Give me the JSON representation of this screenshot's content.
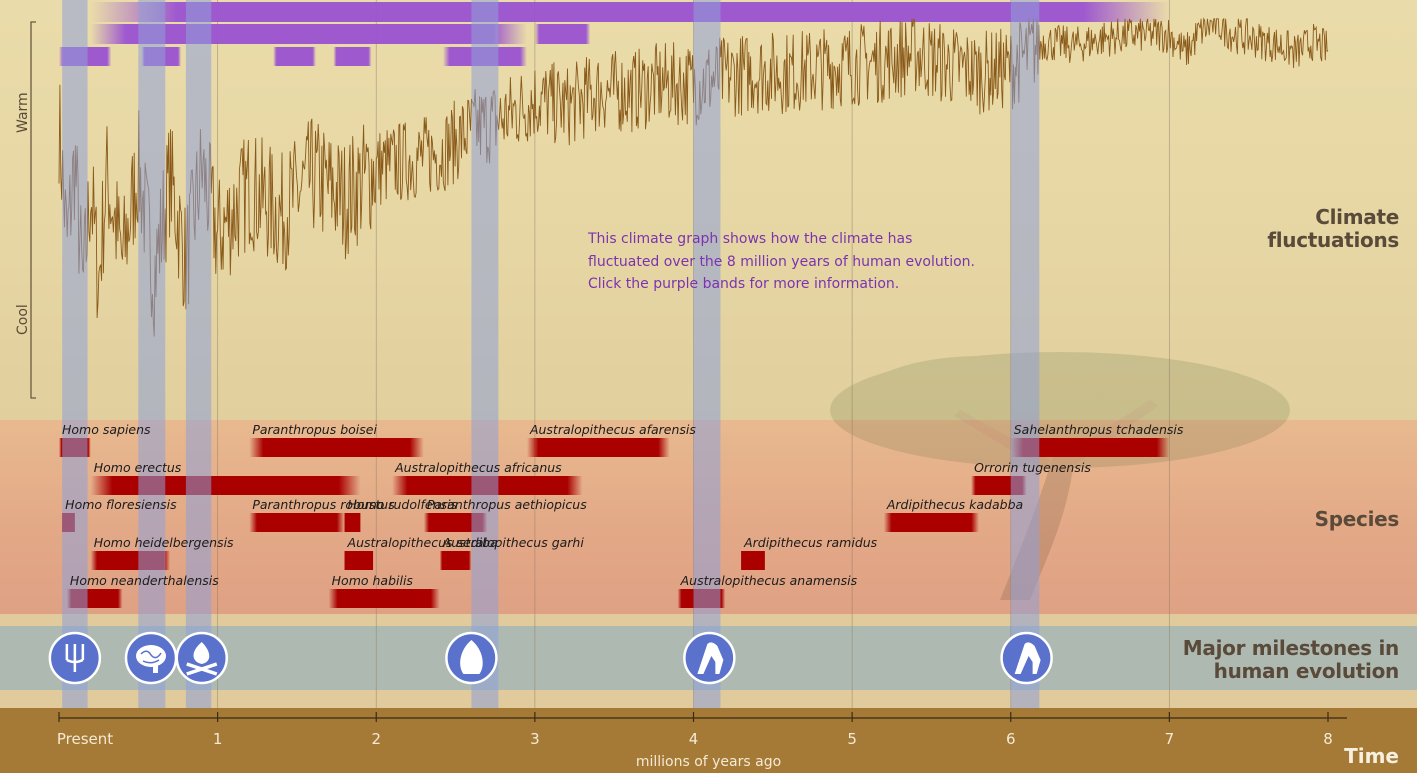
{
  "sections": {
    "climate": "Climate fluctuations",
    "species": "Species",
    "milestones": "Major milestones in human evolution",
    "time": "Time"
  },
  "climate_axis": {
    "warm": "Warm",
    "cool": "Cool"
  },
  "info_text": "This climate graph shows how the climate has fluctuated over the 8 million years of human evolution. Click the purple bands for more information.",
  "x_axis": {
    "title": "millions of years ago",
    "ticks": [
      {
        "value": 0,
        "label": "Present"
      },
      {
        "value": 1,
        "label": "1"
      },
      {
        "value": 2,
        "label": "2"
      },
      {
        "value": 3,
        "label": "3"
      },
      {
        "value": 4,
        "label": "4"
      },
      {
        "value": 5,
        "label": "5"
      },
      {
        "value": 6,
        "label": "6"
      },
      {
        "value": 7,
        "label": "7"
      },
      {
        "value": 8,
        "label": "8"
      }
    ]
  },
  "colors": {
    "purple_band": "#9a52d0",
    "blue_band": "#8ea0d8",
    "species_bar": "#aa0000",
    "climate_line": "#8a5a1a",
    "milestone_circle": "#5a72cc"
  },
  "chart_data": {
    "type": "line",
    "title": "Climate fluctuations",
    "xlabel": "millions of years ago",
    "ylabel": "Warm / Cool",
    "xlim": [
      0,
      8
    ],
    "ylim": [
      0,
      1
    ],
    "blue_bands": [
      {
        "start": 0.02,
        "end": 0.18
      },
      {
        "start": 0.5,
        "end": 0.67
      },
      {
        "start": 0.8,
        "end": 0.96
      },
      {
        "start": 2.6,
        "end": 2.77
      },
      {
        "start": 4.0,
        "end": 4.17
      },
      {
        "start": 6.0,
        "end": 6.18
      }
    ],
    "purple_row1": [
      {
        "start": 0.2,
        "end": 7.0
      }
    ],
    "purple_row2": [
      {
        "start": 0.2,
        "end": 2.95
      },
      {
        "start": 3.0,
        "end": 3.35
      }
    ],
    "purple_row3": [
      {
        "start": 0.0,
        "end": 0.33
      },
      {
        "start": 0.52,
        "end": 0.77
      },
      {
        "start": 1.35,
        "end": 1.62
      },
      {
        "start": 1.73,
        "end": 1.97
      },
      {
        "start": 2.42,
        "end": 2.95
      }
    ],
    "climate_series": {
      "name": "Climate",
      "x": [
        0.0,
        0.05,
        0.1,
        0.15,
        0.2,
        0.25,
        0.3,
        0.4,
        0.5,
        0.6,
        0.7,
        0.8,
        0.9,
        1.0,
        1.2,
        1.4,
        1.6,
        1.8,
        2.0,
        2.2,
        2.4,
        2.6,
        2.8,
        3.0,
        3.2,
        3.4,
        3.6,
        3.8,
        4.0,
        4.2,
        4.4,
        4.6,
        4.8,
        5.0,
        5.2,
        5.4,
        5.6,
        5.8,
        6.0,
        6.2,
        6.4,
        6.6,
        6.8,
        7.0,
        7.1,
        7.2,
        7.3,
        7.4,
        7.5,
        7.6,
        7.7,
        7.8,
        7.9,
        8.0
      ],
      "y": [
        0.72,
        0.4,
        0.62,
        0.28,
        0.55,
        0.3,
        0.58,
        0.36,
        0.6,
        0.32,
        0.58,
        0.35,
        0.6,
        0.42,
        0.55,
        0.48,
        0.58,
        0.52,
        0.6,
        0.62,
        0.64,
        0.7,
        0.73,
        0.78,
        0.76,
        0.8,
        0.8,
        0.82,
        0.82,
        0.84,
        0.85,
        0.85,
        0.86,
        0.87,
        0.88,
        0.9,
        0.87,
        0.85,
        0.86,
        0.93,
        0.92,
        0.94,
        0.95,
        0.95,
        0.9,
        0.96,
        0.98,
        0.95,
        0.94,
        0.93,
        0.92,
        0.9,
        0.93,
        0.91
      ]
    },
    "species": [
      {
        "name": "Homo sapiens",
        "start": 0.0,
        "end": 0.2,
        "row": 0
      },
      {
        "name": "Paranthropus boisei",
        "start": 1.2,
        "end": 2.3,
        "row": 0
      },
      {
        "name": "Australopithecus afarensis",
        "start": 2.95,
        "end": 3.85,
        "row": 0
      },
      {
        "name": "Sahelanthropus tchadensis",
        "start": 6.0,
        "end": 7.0,
        "row": 0
      },
      {
        "name": "Homo erectus",
        "start": 0.2,
        "end": 1.9,
        "row": 1
      },
      {
        "name": "Australopithecus africanus",
        "start": 2.1,
        "end": 3.3,
        "row": 1
      },
      {
        "name": "Orrorin tugenensis",
        "start": 5.75,
        "end": 6.1,
        "row": 1
      },
      {
        "name": "Homo floresiensis",
        "start": 0.02,
        "end": 0.1,
        "row": 2
      },
      {
        "name": "Paranthropus robustus",
        "start": 1.2,
        "end": 1.8,
        "row": 2
      },
      {
        "name": "Homo rudolfensis",
        "start": 1.8,
        "end": 1.9,
        "row": 2
      },
      {
        "name": "Paranthropus aethiopicus",
        "start": 2.3,
        "end": 2.7,
        "row": 2
      },
      {
        "name": "Ardipithecus kadabba",
        "start": 5.2,
        "end": 5.8,
        "row": 2
      },
      {
        "name": "Homo heidelbergensis",
        "start": 0.2,
        "end": 0.7,
        "row": 3
      },
      {
        "name": "Australopithecus sediba",
        "start": 1.8,
        "end": 1.98,
        "row": 3
      },
      {
        "name": "Australopithecus garhi",
        "start": 2.4,
        "end": 2.6,
        "row": 3
      },
      {
        "name": "Ardipithecus ramidus",
        "start": 4.3,
        "end": 4.45,
        "row": 3
      },
      {
        "name": "Homo neanderthalensis",
        "start": 0.05,
        "end": 0.4,
        "row": 4
      },
      {
        "name": "Homo habilis",
        "start": 1.7,
        "end": 2.4,
        "row": 4
      },
      {
        "name": "Australopithecus anamensis",
        "start": 3.9,
        "end": 4.2,
        "row": 4
      }
    ],
    "milestones": [
      {
        "name": "tools-icon",
        "value": 0.1
      },
      {
        "name": "brain-icon",
        "value": 0.58
      },
      {
        "name": "fire-icon",
        "value": 0.9
      },
      {
        "name": "stone-tool-icon",
        "value": 2.6
      },
      {
        "name": "bipedal-icon",
        "value": 4.1
      },
      {
        "name": "bipedal-early-icon",
        "value": 6.1
      }
    ]
  }
}
